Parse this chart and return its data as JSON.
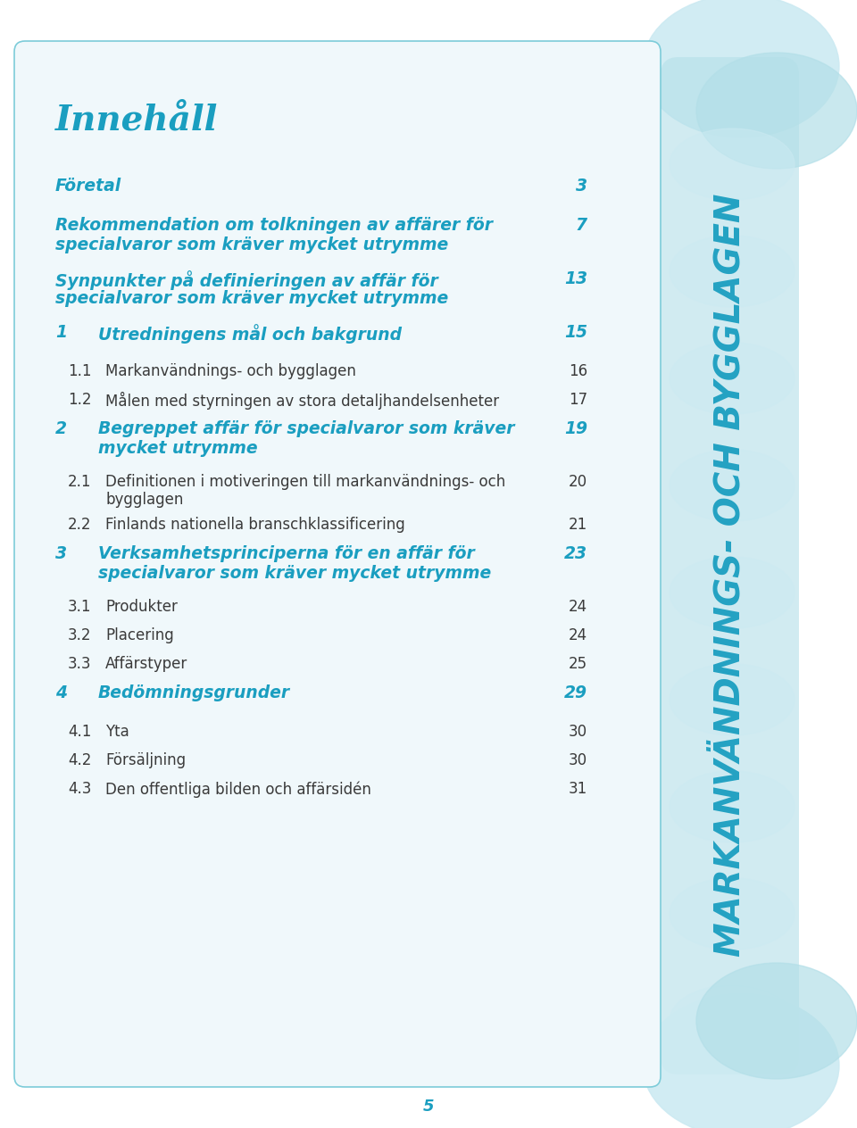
{
  "bg_color": "#ffffff",
  "box_bg": "#f0f8fb",
  "box_border": "#7dccd9",
  "teal_color": "#1a9ec0",
  "dark_text": "#3a3a3a",
  "sub_text": "#3a3a3a",
  "title": "Innehåll",
  "entries": [
    {
      "num": "",
      "text": "Företal",
      "page": "3",
      "bold_italic": true,
      "multiline": false
    },
    {
      "num": "",
      "text": "Rekommendation om tolkningen av affärer för",
      "text2": "specialvaror som kräver mycket utrymme",
      "page": "7",
      "bold_italic": true,
      "multiline": true
    },
    {
      "num": "",
      "text": "Synpunkter på definieringen av affär för",
      "text2": "specialvaror som kräver mycket utrymme",
      "page": "13",
      "bold_italic": true,
      "multiline": true
    },
    {
      "num": "1",
      "text": "Utredningens mål och bakgrund",
      "page": "15",
      "bold_italic": true,
      "multiline": false
    },
    {
      "num": "1.1",
      "text": "Markanvändnings- och bygglagen",
      "page": "16",
      "bold_italic": false,
      "multiline": false
    },
    {
      "num": "1.2",
      "text": "Målen med styrningen av stora detaljhandelsenheter",
      "page": "17",
      "bold_italic": false,
      "multiline": false
    },
    {
      "num": "2",
      "text": "Begreppet affär för specialvaror som kräver",
      "text2": "mycket utrymme",
      "page": "19",
      "bold_italic": true,
      "multiline": true
    },
    {
      "num": "2.1",
      "text": "Definitionen i motiveringen till markanvändnings- och",
      "text2": "bygglagen",
      "page": "20",
      "bold_italic": false,
      "multiline": true
    },
    {
      "num": "2.2",
      "text": "Finlands nationella branschklassificering",
      "page": "21",
      "bold_italic": false,
      "multiline": false
    },
    {
      "num": "3",
      "text": "Verksamhetsprinciperna för en affär för",
      "text2": "specialvaror som kräver mycket utrymme",
      "page": "23",
      "bold_italic": true,
      "multiline": true
    },
    {
      "num": "3.1",
      "text": "Produkter",
      "page": "24",
      "bold_italic": false,
      "multiline": false
    },
    {
      "num": "3.2",
      "text": "Placering",
      "page": "24",
      "bold_italic": false,
      "multiline": false
    },
    {
      "num": "3.3",
      "text": "Affärstyper",
      "page": "25",
      "bold_italic": false,
      "multiline": false
    },
    {
      "num": "4",
      "text": "Bedömningsgrunder",
      "page": "29",
      "bold_italic": true,
      "multiline": false
    },
    {
      "num": "4.1",
      "text": "Yta",
      "page": "30",
      "bold_italic": false,
      "multiline": false
    },
    {
      "num": "4.2",
      "text": "Försäljning",
      "page": "30",
      "bold_italic": false,
      "multiline": false
    },
    {
      "num": "4.3",
      "text": "Den offentliga bilden och affärsidén",
      "page": "31",
      "bold_italic": false,
      "multiline": false
    }
  ],
  "footer_page": "5",
  "vertical_text": "MARKANVÄNDNINGS- OCH BYGGLAGEN",
  "ribbon_color": "#b3dfe8",
  "ribbon_color2": "#cceaf2"
}
